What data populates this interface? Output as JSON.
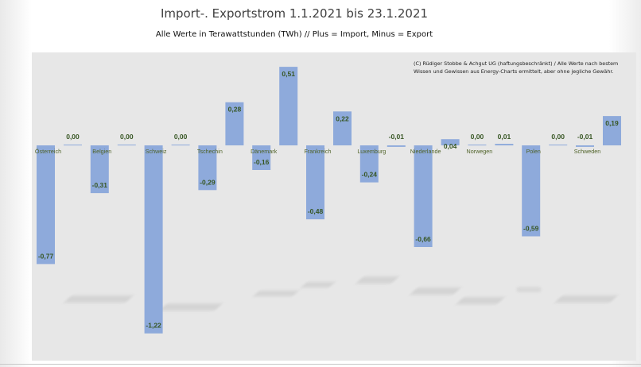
{
  "title": "Import-. Exportstrom 1.1.2021 bis 23.1.2021",
  "subtitle": "Alle Werte in Terawattstunden (TWh) // Plus = Import, Minus = Export",
  "credit": "(C) Rüdiger Stobbe & Achgut UG (haftungsbeschränkt) / Alle Werte nach bestem Wissen und Gewissen aus Energy-Charts ermittelt, aber ohne jegliche Gewähr.",
  "colors": {
    "bar": "#8eaadb",
    "value_label": "#375623",
    "category_label": "#4f6228",
    "plot_background": "#e7e7e7"
  },
  "chart_data": {
    "type": "bar",
    "title": "Import-. Exportstrom 1.1.2021 bis 23.1.2021",
    "subtitle": "Alle Werte in Terawattstunden (TWh) // Plus = Import, Minus = Export",
    "xlabel": "",
    "ylabel": "",
    "ylim": [
      -1.3,
      0.55
    ],
    "grid": false,
    "categories": [
      "Österreich",
      "Belgien",
      "Schweiz",
      "Tschechin",
      "Dänemark",
      "Frankreich",
      "Luxemburg",
      "Niederlande",
      "Norwegen",
      "Polen",
      "Schweden"
    ],
    "series": [
      {
        "values": [
          -0.77,
          -0.31,
          -1.22,
          -0.29,
          -0.16,
          -0.48,
          -0.24,
          -0.66,
          0.0,
          -0.59,
          -0.01
        ]
      },
      {
        "values": [
          0.0,
          0.0,
          0.0,
          0.28,
          0.51,
          0.22,
          -0.01,
          0.04,
          0.01,
          0.0,
          0.19
        ]
      }
    ],
    "value_labels": [
      [
        "-0,77",
        "-0,31",
        "-1,22",
        "-0,29",
        "-0,16",
        "-0,48",
        "-0,24",
        "-0,66",
        "0,00",
        "-0,59",
        "-0,01"
      ],
      [
        "0,00",
        "0,00",
        "0,00",
        "0,28",
        "0,51",
        "0,22",
        "-0,01",
        "0,04",
        "0,01",
        "0,00",
        "0,19"
      ]
    ]
  }
}
